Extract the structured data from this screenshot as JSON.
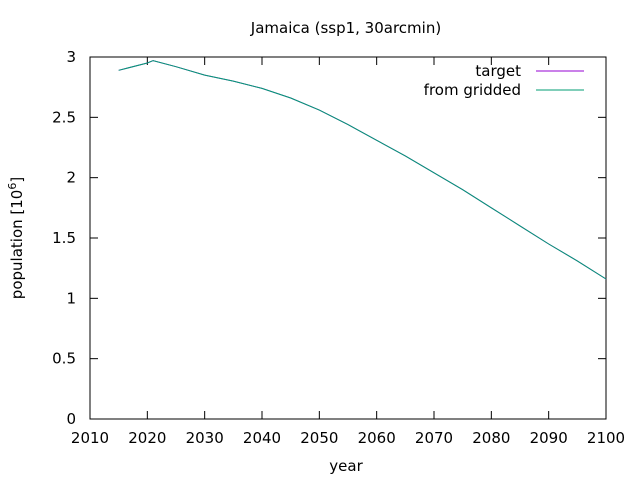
{
  "chart_data": {
    "type": "line",
    "title": "Jamaica (ssp1, 30arcmin)",
    "xlabel": "year",
    "ylabel": "population [10",
    "ylabel_sup": "6",
    "ylabel_close": "]",
    "xlim": [
      2010,
      2100
    ],
    "ylim": [
      0,
      3
    ],
    "xticks": [
      2010,
      2020,
      2030,
      2040,
      2050,
      2060,
      2070,
      2080,
      2090,
      2100
    ],
    "yticks": [
      0,
      0.5,
      1,
      1.5,
      2,
      2.5,
      3
    ],
    "ytick_labels": [
      "0",
      "0.5",
      "1",
      "1.5",
      "2",
      "2.5",
      "3"
    ],
    "legend_position": "top-right",
    "grid": false,
    "series": [
      {
        "name": "target",
        "color": "#9400d3",
        "x": [
          2015,
          2020,
          2021,
          2025,
          2030,
          2035,
          2040,
          2045,
          2050,
          2055,
          2060,
          2065,
          2070,
          2075,
          2080,
          2085,
          2090,
          2095,
          2100
        ],
        "y": [
          2.89,
          2.95,
          2.97,
          2.92,
          2.85,
          2.8,
          2.74,
          2.66,
          2.56,
          2.44,
          2.31,
          2.18,
          2.04,
          1.9,
          1.75,
          1.6,
          1.45,
          1.31,
          1.16
        ]
      },
      {
        "name": "from gridded",
        "color": "#009e73",
        "x": [
          2015,
          2020,
          2021,
          2025,
          2030,
          2035,
          2040,
          2045,
          2050,
          2055,
          2060,
          2065,
          2070,
          2075,
          2080,
          2085,
          2090,
          2095,
          2100
        ],
        "y": [
          2.89,
          2.95,
          2.97,
          2.92,
          2.85,
          2.8,
          2.74,
          2.66,
          2.56,
          2.44,
          2.31,
          2.18,
          2.04,
          1.9,
          1.75,
          1.6,
          1.45,
          1.31,
          1.16
        ]
      }
    ]
  }
}
